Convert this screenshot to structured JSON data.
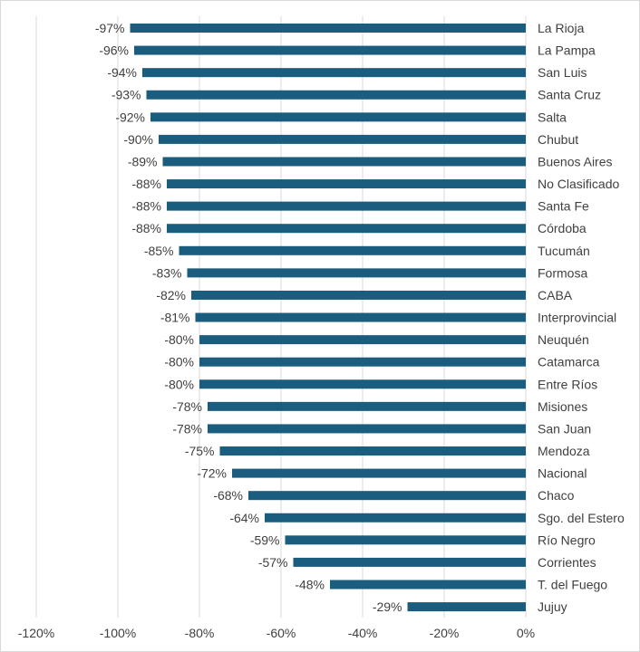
{
  "chart_data": {
    "type": "bar",
    "orientation": "horizontal",
    "title": "",
    "xlabel": "",
    "ylabel": "",
    "xlim": [
      -120,
      0
    ],
    "grid": true,
    "bar_color": "#1b5d7e",
    "grid_color": "#d9d9d9",
    "text_color": "#404040",
    "x_ticks": [
      "-120%",
      "-100%",
      "-80%",
      "-60%",
      "-40%",
      "-20%",
      "0%"
    ],
    "x_tick_values": [
      -120,
      -100,
      -80,
      -60,
      -40,
      -20,
      0
    ],
    "categories": [
      "La Rioja",
      "La Pampa",
      "San Luis",
      "Santa Cruz",
      "Salta",
      "Chubut",
      "Buenos Aires",
      "No Clasificado",
      "Santa Fe",
      "Córdoba",
      "Tucumán",
      "Formosa",
      "CABA",
      "Interprovincial",
      "Neuquén",
      "Catamarca",
      "Entre Ríos",
      "Misiones",
      "San Juan",
      "Mendoza",
      "Nacional",
      "Chaco",
      "Sgo. del Estero",
      "Río Negro",
      "Corrientes",
      "T. del Fuego",
      "Jujuy"
    ],
    "values": [
      -97,
      -96,
      -94,
      -93,
      -92,
      -90,
      -89,
      -88,
      -88,
      -88,
      -85,
      -83,
      -82,
      -81,
      -80,
      -80,
      -80,
      -78,
      -78,
      -75,
      -72,
      -68,
      -64,
      -59,
      -57,
      -48,
      -29
    ],
    "value_labels": [
      "-97%",
      "-96%",
      "-94%",
      "-93%",
      "-92%",
      "-90%",
      "-89%",
      "-88%",
      "-88%",
      "-88%",
      "-85%",
      "-83%",
      "-82%",
      "-81%",
      "-80%",
      "-80%",
      "-80%",
      "-78%",
      "-78%",
      "-75%",
      "-72%",
      "-68%",
      "-64%",
      "-59%",
      "-57%",
      "-48%",
      "-29%"
    ]
  }
}
